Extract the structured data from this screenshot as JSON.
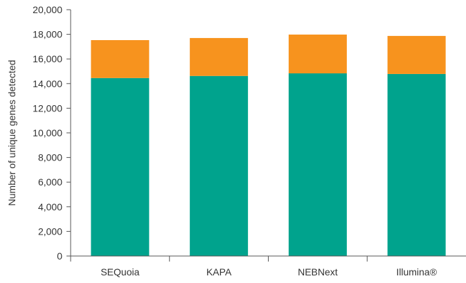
{
  "chart_data": {
    "type": "bar",
    "stacked": true,
    "categories": [
      "SEQuoia",
      "KAPA",
      "NEBNext",
      "Illumina®"
    ],
    "series": [
      {
        "color": "#00a38d",
        "values": [
          14450,
          14620,
          14830,
          14780
        ]
      },
      {
        "color": "#f7931e",
        "values": [
          3080,
          3080,
          3150,
          3090
        ]
      }
    ],
    "title": "",
    "xlabel": "",
    "ylabel": "Number of unique genes detected",
    "ylim": [
      0,
      20000
    ],
    "yticks": [
      0,
      2000,
      4000,
      6000,
      8000,
      10000,
      12000,
      14000,
      16000,
      18000,
      20000
    ],
    "ytick_labels": [
      "0",
      "2,000",
      "4,000",
      "6,000",
      "8,000",
      "10,000",
      "12,000",
      "14,000",
      "16,000",
      "18,000",
      "20,000"
    ],
    "grid": false,
    "legend": "none",
    "axis_color": "#555555"
  }
}
